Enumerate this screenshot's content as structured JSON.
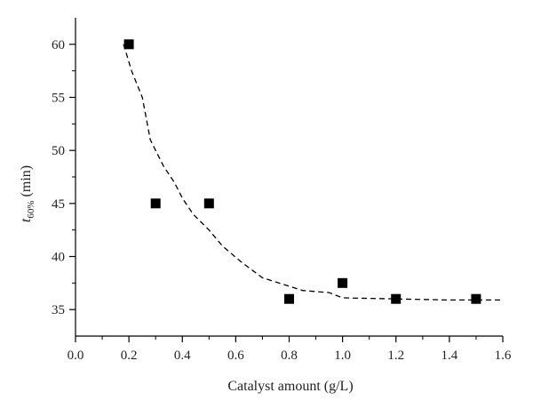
{
  "chart_data": {
    "type": "scatter",
    "xlabel": "Catalyst amount (g/L)",
    "ylabel": {
      "main": "t",
      "subscript": "60%",
      "unit": "(min)"
    },
    "xlim": [
      0.0,
      1.6
    ],
    "ylim": [
      32.5,
      62.5
    ],
    "x_ticks": [
      "0.0",
      "0.2",
      "0.4",
      "0.6",
      "0.8",
      "1.0",
      "1.2",
      "1.4",
      "1.6"
    ],
    "y_ticks": [
      "35",
      "40",
      "45",
      "50",
      "55",
      "60"
    ],
    "grid": false,
    "marker_color": "#000000",
    "series": [
      {
        "marker": "square",
        "points": [
          {
            "x": 0.2,
            "y": 60
          },
          {
            "x": 0.3,
            "y": 45
          },
          {
            "x": 0.5,
            "y": 45
          },
          {
            "x": 0.8,
            "y": 36
          },
          {
            "x": 1.0,
            "y": 37.5
          },
          {
            "x": 1.2,
            "y": 36
          },
          {
            "x": 1.5,
            "y": 36
          }
        ]
      },
      {
        "line_style": "dashed",
        "points": [
          {
            "x": 0.18,
            "y": 60
          },
          {
            "x": 0.21,
            "y": 57.5
          },
          {
            "x": 0.25,
            "y": 55
          },
          {
            "x": 0.28,
            "y": 51
          },
          {
            "x": 0.33,
            "y": 48.5
          },
          {
            "x": 0.37,
            "y": 47
          },
          {
            "x": 0.4,
            "y": 45.5
          },
          {
            "x": 0.44,
            "y": 44
          },
          {
            "x": 0.5,
            "y": 42.5
          },
          {
            "x": 0.55,
            "y": 41
          },
          {
            "x": 0.62,
            "y": 39.5
          },
          {
            "x": 0.7,
            "y": 38
          },
          {
            "x": 0.8,
            "y": 37.2
          },
          {
            "x": 0.85,
            "y": 36.8
          },
          {
            "x": 0.95,
            "y": 36.6
          },
          {
            "x": 1.0,
            "y": 36.1
          },
          {
            "x": 1.2,
            "y": 36
          },
          {
            "x": 1.4,
            "y": 35.9
          },
          {
            "x": 1.6,
            "y": 35.9
          }
        ]
      }
    ]
  }
}
